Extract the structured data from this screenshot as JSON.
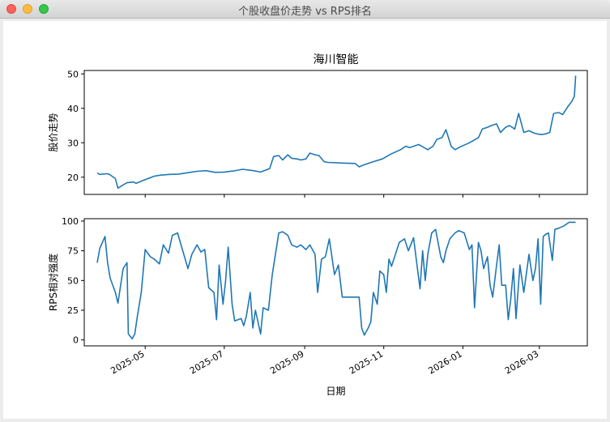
{
  "window": {
    "title": "个股收盘价走势 vs RPS排名"
  },
  "chart_data": [
    {
      "type": "line",
      "title": "海川智能",
      "xlabel": "",
      "ylabel": "股价走势",
      "ylim": [
        15,
        51
      ],
      "yticks": [
        20,
        30,
        40,
        50
      ],
      "color": "#1f77b4",
      "series": [
        {
          "points": [
            [
              "2025-03-25",
              21.2
            ],
            [
              "2025-03-27",
              20.8
            ],
            [
              "2025-04-01",
              21.0
            ],
            [
              "2025-04-03",
              20.9
            ],
            [
              "2025-04-08",
              19.6
            ],
            [
              "2025-04-10",
              16.8
            ],
            [
              "2025-04-15",
              18.0
            ],
            [
              "2025-04-17",
              18.4
            ],
            [
              "2025-04-22",
              18.6
            ],
            [
              "2025-04-24",
              18.2
            ],
            [
              "2025-04-29",
              19.0
            ],
            [
              "2025-05-06",
              20.0
            ],
            [
              "2025-05-08",
              20.3
            ],
            [
              "2025-05-13",
              20.6
            ],
            [
              "2025-05-20",
              20.8
            ],
            [
              "2025-05-27",
              20.9
            ],
            [
              "2025-06-03",
              21.3
            ],
            [
              "2025-06-10",
              21.7
            ],
            [
              "2025-06-17",
              21.9
            ],
            [
              "2025-06-24",
              21.4
            ],
            [
              "2025-07-01",
              21.5
            ],
            [
              "2025-07-08",
              21.8
            ],
            [
              "2025-07-15",
              22.3
            ],
            [
              "2025-07-22",
              22.0
            ],
            [
              "2025-07-29",
              21.5
            ],
            [
              "2025-08-05",
              22.5
            ],
            [
              "2025-08-08",
              26.0
            ],
            [
              "2025-08-12",
              26.3
            ],
            [
              "2025-08-15",
              25.0
            ],
            [
              "2025-08-19",
              26.5
            ],
            [
              "2025-08-22",
              25.5
            ],
            [
              "2025-08-26",
              25.3
            ],
            [
              "2025-08-29",
              25.0
            ],
            [
              "2025-09-02",
              25.3
            ],
            [
              "2025-09-05",
              27.0
            ],
            [
              "2025-09-09",
              26.5
            ],
            [
              "2025-09-12",
              26.3
            ],
            [
              "2025-09-16",
              24.5
            ],
            [
              "2025-09-19",
              24.3
            ],
            [
              "2025-09-30",
              24.1
            ],
            [
              "2025-10-10",
              24.0
            ],
            [
              "2025-10-13",
              23.0
            ],
            [
              "2025-10-17",
              23.6
            ],
            [
              "2025-10-24",
              24.5
            ],
            [
              "2025-10-31",
              25.3
            ],
            [
              "2025-11-07",
              26.8
            ],
            [
              "2025-11-14",
              28.0
            ],
            [
              "2025-11-18",
              29.0
            ],
            [
              "2025-11-21",
              28.6
            ],
            [
              "2025-11-28",
              29.5
            ],
            [
              "2025-12-05",
              28.0
            ],
            [
              "2025-12-09",
              29.0
            ],
            [
              "2025-12-12",
              31.0
            ],
            [
              "2025-12-16",
              31.5
            ],
            [
              "2025-12-19",
              33.8
            ],
            [
              "2025-12-23",
              29.0
            ],
            [
              "2025-12-26",
              28.0
            ],
            [
              "2025-12-30",
              28.8
            ],
            [
              "2026-01-06",
              30.0
            ],
            [
              "2026-01-13",
              31.5
            ],
            [
              "2026-01-16",
              34.0
            ],
            [
              "2026-01-20",
              34.5
            ],
            [
              "2026-01-23",
              35.0
            ],
            [
              "2026-01-27",
              35.5
            ],
            [
              "2026-01-30",
              33.0
            ],
            [
              "2026-02-03",
              34.5
            ],
            [
              "2026-02-06",
              35.0
            ],
            [
              "2026-02-10",
              34.0
            ],
            [
              "2026-02-13",
              38.5
            ],
            [
              "2026-02-17",
              33.0
            ],
            [
              "2026-02-21",
              33.5
            ],
            [
              "2026-02-25",
              32.8
            ],
            [
              "2026-02-28",
              32.5
            ],
            [
              "2026-03-03",
              32.4
            ],
            [
              "2026-03-06",
              32.6
            ],
            [
              "2026-03-09",
              33.0
            ],
            [
              "2026-03-12",
              38.5
            ],
            [
              "2026-03-16",
              38.8
            ],
            [
              "2026-03-19",
              38.2
            ],
            [
              "2026-03-23",
              40.5
            ],
            [
              "2026-03-26",
              42.0
            ],
            [
              "2026-03-28",
              43.5
            ],
            [
              "2026-03-29",
              49.5
            ]
          ]
        }
      ]
    },
    {
      "type": "line",
      "title": "",
      "xlabel": "日期",
      "ylabel": "RPS相对强度",
      "ylim": [
        -5,
        102
      ],
      "yticks": [
        0,
        25,
        50,
        75,
        100
      ],
      "color": "#1f77b4",
      "xticks": [
        "2025-05",
        "2025-07",
        "2025-09",
        "2025-11",
        "2026-01",
        "2026-03"
      ],
      "series": [
        {
          "points": [
            [
              "2025-03-25",
              65
            ],
            [
              "2025-03-27",
              77
            ],
            [
              "2025-03-31",
              87
            ],
            [
              "2025-04-02",
              65
            ],
            [
              "2025-04-04",
              52
            ],
            [
              "2025-04-08",
              40
            ],
            [
              "2025-04-10",
              31
            ],
            [
              "2025-04-14",
              60
            ],
            [
              "2025-04-17",
              65
            ],
            [
              "2025-04-18",
              5
            ],
            [
              "2025-04-21",
              1
            ],
            [
              "2025-04-23",
              5
            ],
            [
              "2025-04-25",
              20
            ],
            [
              "2025-04-28",
              40
            ],
            [
              "2025-05-01",
              76
            ],
            [
              "2025-05-05",
              70
            ],
            [
              "2025-05-08",
              68
            ],
            [
              "2025-05-12",
              64
            ],
            [
              "2025-05-15",
              80
            ],
            [
              "2025-05-19",
              73
            ],
            [
              "2025-05-22",
              88
            ],
            [
              "2025-05-26",
              90
            ],
            [
              "2025-05-30",
              75
            ],
            [
              "2025-06-03",
              60
            ],
            [
              "2025-06-06",
              72
            ],
            [
              "2025-06-10",
              80
            ],
            [
              "2025-06-13",
              74
            ],
            [
              "2025-06-16",
              76
            ],
            [
              "2025-06-19",
              44
            ],
            [
              "2025-06-23",
              40
            ],
            [
              "2025-06-25",
              17
            ],
            [
              "2025-06-27",
              63
            ],
            [
              "2025-06-30",
              30
            ],
            [
              "2025-07-02",
              50
            ],
            [
              "2025-07-04",
              78
            ],
            [
              "2025-07-07",
              30
            ],
            [
              "2025-07-09",
              16
            ],
            [
              "2025-07-14",
              18
            ],
            [
              "2025-07-16",
              12
            ],
            [
              "2025-07-18",
              20
            ],
            [
              "2025-07-21",
              40
            ],
            [
              "2025-07-23",
              10
            ],
            [
              "2025-07-25",
              25
            ],
            [
              "2025-07-29",
              5
            ],
            [
              "2025-07-31",
              27
            ],
            [
              "2025-08-04",
              25
            ],
            [
              "2025-08-07",
              55
            ],
            [
              "2025-08-12",
              90
            ],
            [
              "2025-08-15",
              91
            ],
            [
              "2025-08-19",
              88
            ],
            [
              "2025-08-22",
              80
            ],
            [
              "2025-08-26",
              78
            ],
            [
              "2025-08-29",
              80
            ],
            [
              "2025-09-02",
              76
            ],
            [
              "2025-09-05",
              80
            ],
            [
              "2025-09-09",
              72
            ],
            [
              "2025-09-11",
              40
            ],
            [
              "2025-09-14",
              68
            ],
            [
              "2025-09-17",
              70
            ],
            [
              "2025-09-20",
              85
            ],
            [
              "2025-09-24",
              55
            ],
            [
              "2025-09-27",
              63
            ],
            [
              "2025-09-30",
              36
            ],
            [
              "2025-10-10",
              36
            ],
            [
              "2025-10-13",
              36
            ],
            [
              "2025-10-15",
              10
            ],
            [
              "2025-10-17",
              4
            ],
            [
              "2025-10-20",
              10
            ],
            [
              "2025-10-22",
              15
            ],
            [
              "2025-10-24",
              40
            ],
            [
              "2025-10-27",
              30
            ],
            [
              "2025-10-29",
              58
            ],
            [
              "2025-11-01",
              55
            ],
            [
              "2025-11-03",
              40
            ],
            [
              "2025-11-05",
              68
            ],
            [
              "2025-11-07",
              62
            ],
            [
              "2025-11-10",
              72
            ],
            [
              "2025-11-13",
              82
            ],
            [
              "2025-11-17",
              85
            ],
            [
              "2025-11-20",
              75
            ],
            [
              "2025-11-24",
              86
            ],
            [
              "2025-11-27",
              60
            ],
            [
              "2025-11-29",
              43
            ],
            [
              "2025-12-01",
              75
            ],
            [
              "2025-12-03",
              50
            ],
            [
              "2025-12-05",
              72
            ],
            [
              "2025-12-08",
              90
            ],
            [
              "2025-12-11",
              93
            ],
            [
              "2025-12-15",
              70
            ],
            [
              "2025-12-17",
              65
            ],
            [
              "2025-12-19",
              75
            ],
            [
              "2025-12-22",
              85
            ],
            [
              "2025-12-26",
              90
            ],
            [
              "2025-12-29",
              92
            ],
            [
              "2026-01-02",
              90
            ],
            [
              "2026-01-06",
              76
            ],
            [
              "2026-01-08",
              80
            ],
            [
              "2026-01-10",
              27
            ],
            [
              "2026-01-13",
              82
            ],
            [
              "2026-01-15",
              75
            ],
            [
              "2026-01-17",
              60
            ],
            [
              "2026-01-20",
              70
            ],
            [
              "2026-01-22",
              46
            ],
            [
              "2026-01-24",
              36
            ],
            [
              "2026-01-27",
              63
            ],
            [
              "2026-01-29",
              80
            ],
            [
              "2026-01-31",
              46
            ],
            [
              "2026-02-03",
              46
            ],
            [
              "2026-02-05",
              17
            ],
            [
              "2026-02-07",
              35
            ],
            [
              "2026-02-09",
              60
            ],
            [
              "2026-02-11",
              18
            ],
            [
              "2026-02-14",
              63
            ],
            [
              "2026-02-17",
              40
            ],
            [
              "2026-02-21",
              72
            ],
            [
              "2026-02-24",
              50
            ],
            [
              "2026-02-26",
              60
            ],
            [
              "2026-02-28",
              85
            ],
            [
              "2026-03-02",
              30
            ],
            [
              "2026-03-04",
              87
            ],
            [
              "2026-03-06",
              89
            ],
            [
              "2026-03-08",
              90
            ],
            [
              "2026-03-11",
              67
            ],
            [
              "2026-03-13",
              93
            ],
            [
              "2026-03-16",
              94
            ],
            [
              "2026-03-20",
              96
            ],
            [
              "2026-03-24",
              99
            ],
            [
              "2026-03-29",
              99
            ]
          ]
        }
      ]
    }
  ]
}
